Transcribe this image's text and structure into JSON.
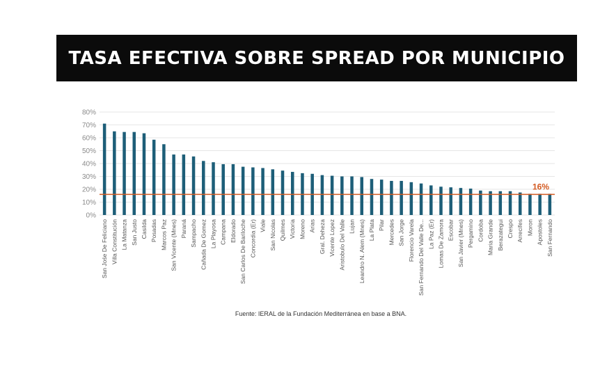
{
  "header": {
    "title": "TASA EFECTIVA SOBRE SPREAD POR MUNICIPIO"
  },
  "footer": {
    "source": "Fuente: IERAL de la Fundación Mediterránea en base a BNA."
  },
  "colors": {
    "bar": "#1d5e78",
    "reference_line": "#d35a22",
    "grid": "#e6e6e6",
    "tick_text": "#8a8a8a"
  },
  "chart_data": {
    "type": "bar",
    "title": "TASA EFECTIVA SOBRE SPREAD POR MUNICIPIO",
    "xlabel": "",
    "ylabel": "",
    "ylim": [
      0,
      80
    ],
    "yticks": [
      "0%",
      "10%",
      "20%",
      "30%",
      "40%",
      "50%",
      "60%",
      "70%",
      "80%"
    ],
    "grid": true,
    "categories": [
      "San Jośe De Feliciano",
      "Villa Constitución",
      "La Matanza",
      "San Justo",
      "Casilda",
      "Posadas",
      "Marcos Paz",
      "San Vicente (Mnes)",
      "Paraná",
      "Sampacho",
      "Cañada De Gomez",
      "La Playosa",
      "Campana",
      "Eldorado",
      "San Carlos De Bariloche",
      "Concordia (Er)",
      "Viale",
      "San Nicolas",
      "Quilmes",
      "Victoria",
      "Moreno",
      "Arias",
      "Gral. Deheza",
      "Vicente Lopez",
      "Aristobulo Del Valle",
      "Lujan",
      "Leandro N. Alem (Mnes)",
      "La Plata",
      "Pilar",
      "Mercedes",
      "San Jorge",
      "Florencio Varela",
      "San Fernando Del Valle De...",
      "La Paz (Er)",
      "Lomas De Zamora",
      "Escobar",
      "San Javier (Mnes)",
      "Pergamino",
      "Cordoba",
      "Maria Grande",
      "Berazategui",
      "Crespo",
      "Arrecifes",
      "Moron",
      "Apostoles",
      "San Fernando"
    ],
    "values": [
      71,
      65,
      64.5,
      64.5,
      63.5,
      58.5,
      55,
      47,
      47,
      45.5,
      42,
      41,
      39.5,
      39.5,
      37.5,
      37,
      36.5,
      35.5,
      34.5,
      33.5,
      32.5,
      32,
      31,
      30.5,
      30,
      30,
      29.5,
      28,
      27.5,
      26.5,
      26.5,
      25.5,
      24.5,
      23,
      22,
      21.5,
      21,
      20.5,
      19,
      18.5,
      18.5,
      18.5,
      17.5,
      16.5,
      16.5,
      16.5
    ],
    "reference_line": {
      "value": 16,
      "label": "16%"
    }
  }
}
